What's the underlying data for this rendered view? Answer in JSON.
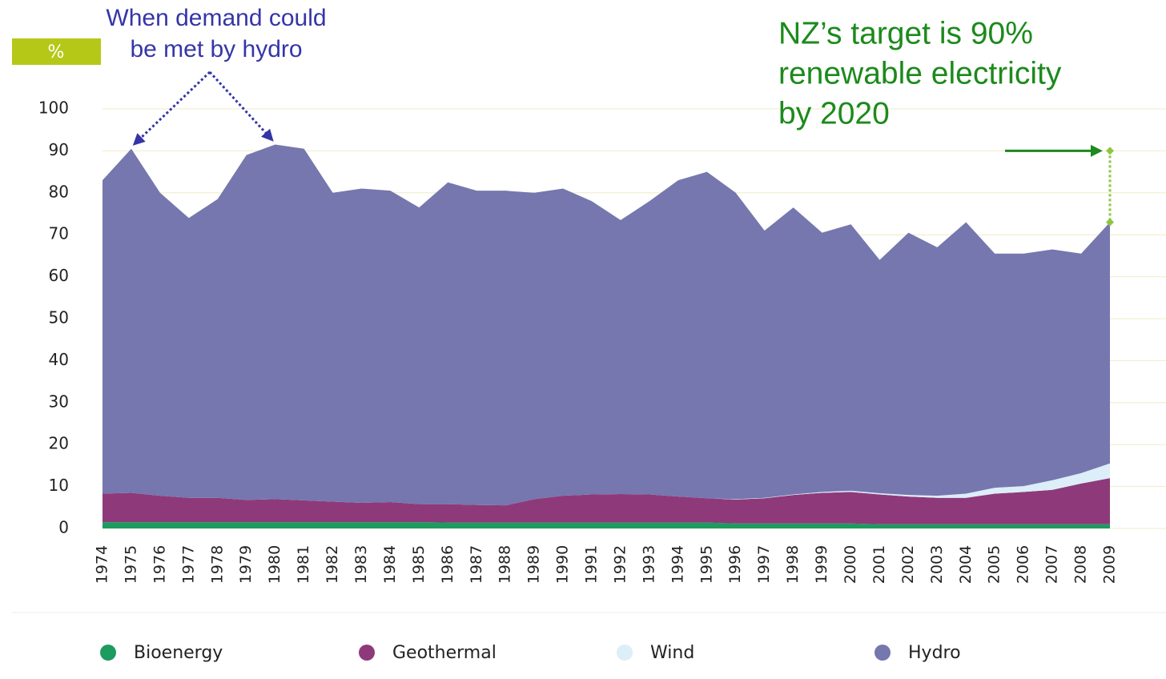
{
  "chart_data": {
    "type": "stacked_area",
    "y_label": "%",
    "categories": [
      "1974",
      "1975",
      "1976",
      "1977",
      "1978",
      "1979",
      "1980",
      "1981",
      "1982",
      "1983",
      "1984",
      "1985",
      "1986",
      "1987",
      "1988",
      "1989",
      "1990",
      "1991",
      "1992",
      "1993",
      "1994",
      "1995",
      "1996",
      "1997",
      "1998",
      "1999",
      "2000",
      "2001",
      "2002",
      "2003",
      "2004",
      "2005",
      "2006",
      "2007",
      "2008",
      "2009"
    ],
    "series": [
      {
        "name": "Bioenergy",
        "color": "#1e9b5f",
        "values": [
          1.5,
          1.5,
          1.5,
          1.5,
          1.5,
          1.5,
          1.5,
          1.5,
          1.5,
          1.5,
          1.5,
          1.5,
          1.4,
          1.4,
          1.4,
          1.4,
          1.4,
          1.4,
          1.4,
          1.4,
          1.4,
          1.4,
          1.2,
          1.2,
          1.2,
          1.2,
          1.2,
          1.0,
          1.0,
          1.0,
          1.0,
          1.0,
          1.0,
          1.0,
          1.0,
          1.0
        ]
      },
      {
        "name": "Geothermal",
        "color": "#8e3a7a",
        "values": [
          6.8,
          7.0,
          6.3,
          5.8,
          5.8,
          5.3,
          5.5,
          5.2,
          4.9,
          4.6,
          4.8,
          4.3,
          4.4,
          4.2,
          4.1,
          5.6,
          6.4,
          6.7,
          6.8,
          6.7,
          6.2,
          5.8,
          5.7,
          6.0,
          6.8,
          7.3,
          7.5,
          7.1,
          6.6,
          6.3,
          6.3,
          7.3,
          7.7,
          8.2,
          9.7,
          11.0
        ]
      },
      {
        "name": "Wind",
        "color": "#dceef8",
        "values": [
          0,
          0,
          0,
          0,
          0,
          0,
          0,
          0,
          0,
          0,
          0,
          0,
          0,
          0,
          0,
          0,
          0,
          0,
          0,
          0,
          0,
          0,
          0.1,
          0.1,
          0.1,
          0.2,
          0.3,
          0.3,
          0.4,
          0.5,
          1.0,
          1.4,
          1.4,
          2.3,
          2.5,
          3.5
        ]
      },
      {
        "name": "Hydro",
        "color": "#7577ae",
        "values": [
          74.7,
          82.0,
          72.2,
          66.7,
          71.2,
          82.2,
          84.5,
          83.8,
          73.6,
          74.9,
          74.2,
          70.7,
          76.7,
          74.9,
          75.0,
          73.0,
          73.2,
          69.9,
          65.3,
          69.9,
          75.4,
          77.8,
          73.0,
          63.7,
          68.4,
          61.8,
          63.5,
          55.6,
          62.5,
          59.2,
          64.7,
          55.8,
          55.4,
          55.0,
          52.3,
          57.5
        ]
      }
    ],
    "ylim": [
      0,
      100
    ],
    "yticks": [
      0,
      10,
      20,
      30,
      40,
      50,
      60,
      70,
      80,
      90,
      100
    ],
    "grid": true,
    "annotations": [
      {
        "lines": [
          "When demand could",
          "be met by hydro"
        ]
      },
      {
        "lines": [
          "NZ’s target is 90%",
          "renewable electricity",
          "by 2020"
        ]
      }
    ]
  }
}
